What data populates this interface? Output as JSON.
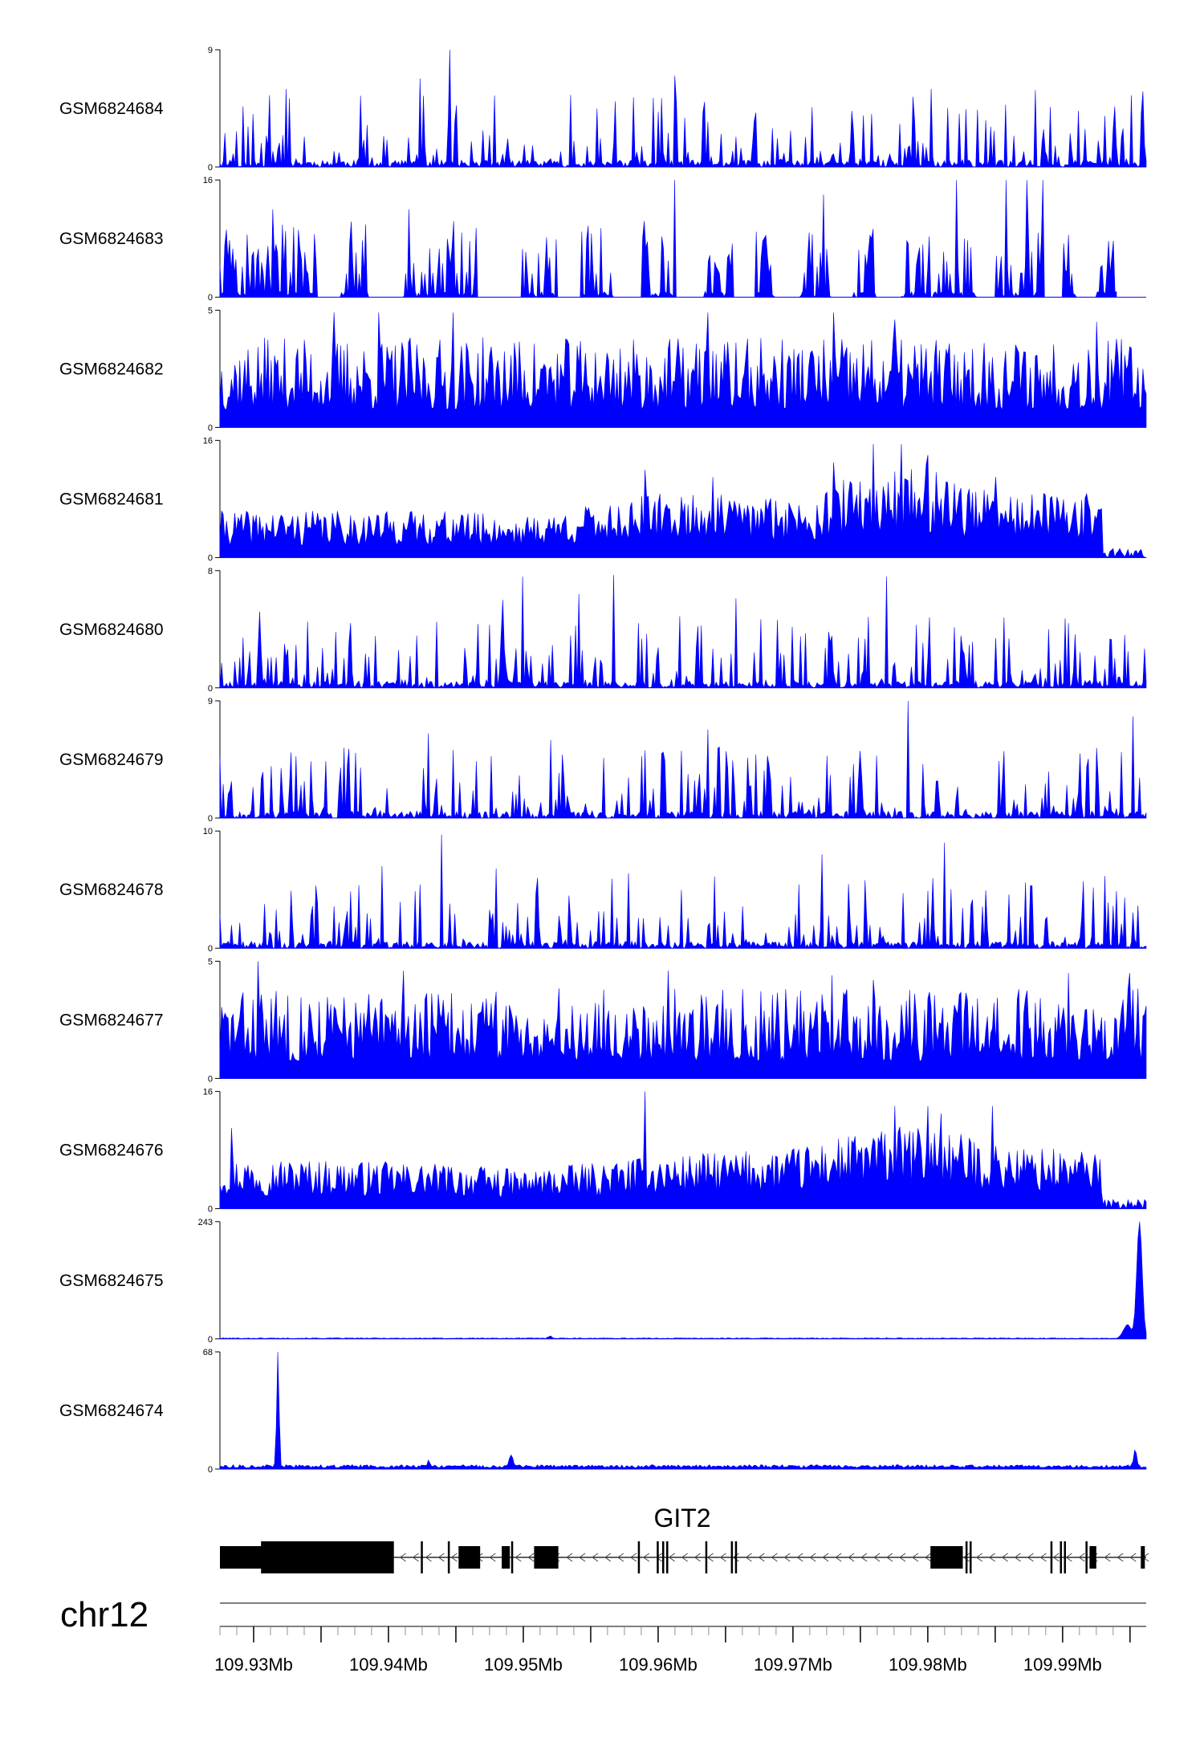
{
  "colors": {
    "signal": "#0000ff",
    "axis": "#000000",
    "gene": "#000000"
  },
  "chart_data": {
    "type": "area",
    "genome": {
      "chromosome": "chr12",
      "xlim": [
        109.9275,
        109.9962
      ],
      "ticks": [
        109.93,
        109.935,
        109.94,
        109.945,
        109.95,
        109.955,
        109.96,
        109.965,
        109.97,
        109.975,
        109.98,
        109.985,
        109.99,
        109.995
      ],
      "tick_labels": [
        {
          "pos": 109.93,
          "label": "109.93Mb"
        },
        {
          "pos": 109.94,
          "label": "109.94Mb"
        },
        {
          "pos": 109.95,
          "label": "109.95Mb"
        },
        {
          "pos": 109.96,
          "label": "109.96Mb"
        },
        {
          "pos": 109.97,
          "label": "109.97Mb"
        },
        {
          "pos": 109.98,
          "label": "109.98Mb"
        },
        {
          "pos": 109.99,
          "label": "109.99Mb"
        }
      ]
    },
    "tracks": [
      {
        "name": "GSM6824684",
        "ymax": 9,
        "ymax_label": "9",
        "ymin_label": "0",
        "profile": "sparse",
        "seed": 11,
        "peaks": [
          [
            109.9445,
            9
          ],
          [
            109.9424,
            6.8
          ],
          [
            109.9612,
            7
          ],
          [
            109.9324,
            6.0
          ],
          [
            109.9802,
            6.0
          ],
          [
            109.988,
            5.9
          ],
          [
            109.9959,
            5.8
          ]
        ]
      },
      {
        "name": "GSM6824683",
        "ymax": 16,
        "ymax_label": "16",
        "ymin_label": "0",
        "profile": "gapped",
        "seed": 23,
        "end": 109.994,
        "peaks": [
          [
            109.9314,
            12
          ],
          [
            109.9415,
            12
          ],
          [
            109.9612,
            16
          ],
          [
            109.9858,
            16
          ],
          [
            109.9873,
            16
          ],
          [
            109.9885,
            16
          ],
          [
            109.9821,
            16
          ],
          [
            109.9723,
            14
          ]
        ],
        "gaps": [
          [
            109.9347,
            109.9365
          ],
          [
            109.9385,
            109.9411
          ],
          [
            109.9465,
            109.9499
          ],
          [
            109.9525,
            109.9543
          ],
          [
            109.9566,
            109.9588
          ],
          [
            109.9612,
            109.9634
          ],
          [
            109.9656,
            109.9672
          ],
          [
            109.9687,
            109.9705
          ],
          [
            109.9728,
            109.9745
          ],
          [
            109.9762,
            109.978
          ],
          [
            109.9836,
            109.985
          ],
          [
            109.9885,
            109.99
          ],
          [
            109.991,
            109.9925
          ]
        ]
      },
      {
        "name": "GSM6824682",
        "ymax": 5,
        "ymax_label": "5",
        "ymin_label": "0",
        "profile": "dense",
        "seed": 37,
        "peaks": [
          [
            109.936,
            4.9
          ],
          [
            109.9393,
            4.9
          ],
          [
            109.9448,
            4.9
          ],
          [
            109.9637,
            4.9
          ],
          [
            109.973,
            4.9
          ],
          [
            109.9775,
            4.6
          ],
          [
            109.9925,
            4.5
          ]
        ]
      },
      {
        "name": "GSM6824681",
        "ymax": 16,
        "ymax_label": "16",
        "ymin_label": "0",
        "profile": "broad",
        "seed": 41,
        "tail_start": 109.993,
        "tail_level": 0.08,
        "peaks": [
          [
            109.976,
            15.5
          ],
          [
            109.978,
            15.5
          ],
          [
            109.98,
            14
          ],
          [
            109.973,
            13
          ],
          [
            109.959,
            12
          ],
          [
            109.964,
            11
          ],
          [
            109.985,
            11
          ]
        ],
        "envelope": [
          [
            109.9275,
            0.4
          ],
          [
            109.945,
            0.4
          ],
          [
            109.95,
            0.35
          ],
          [
            109.96,
            0.55
          ],
          [
            109.97,
            0.52
          ],
          [
            109.976,
            0.75
          ],
          [
            109.98,
            0.8
          ],
          [
            109.985,
            0.55
          ],
          [
            109.992,
            0.55
          ]
        ]
      },
      {
        "name": "GSM6824680",
        "ymax": 8,
        "ymax_label": "8",
        "ymin_label": "0",
        "profile": "sparse",
        "seed": 53,
        "peaks": [
          [
            109.95,
            7.6
          ],
          [
            109.9567,
            7.7
          ],
          [
            109.9769,
            7.6
          ],
          [
            109.9541,
            6.4
          ],
          [
            109.9485,
            6.0
          ],
          [
            109.9658,
            6.1
          ],
          [
            109.9305,
            5.2
          ]
        ]
      },
      {
        "name": "GSM6824679",
        "ymax": 9,
        "ymax_label": "9",
        "ymin_label": "0",
        "profile": "sparse",
        "seed": 67,
        "peaks": [
          [
            109.9785,
            9
          ],
          [
            109.9952,
            7.8
          ],
          [
            109.9637,
            6.8
          ],
          [
            109.943,
            6.5
          ],
          [
            109.952,
            6.0
          ],
          [
            109.9762,
            4.8
          ],
          [
            109.9275,
            4.7
          ]
        ]
      },
      {
        "name": "GSM6824678",
        "ymax": 10,
        "ymax_label": "10",
        "ymin_label": "0",
        "profile": "sparse",
        "seed": 71,
        "peaks": [
          [
            109.944,
            9.7
          ],
          [
            109.9812,
            9.0
          ],
          [
            109.9722,
            8.0
          ],
          [
            109.9395,
            7.0
          ],
          [
            109.948,
            6.8
          ],
          [
            109.9578,
            6.4
          ],
          [
            109.9753,
            5.8
          ]
        ]
      },
      {
        "name": "GSM6824677",
        "ymax": 5,
        "ymax_label": "5",
        "ymin_label": "0",
        "profile": "dense",
        "seed": 83,
        "peaks": [
          [
            109.9303,
            5.0
          ],
          [
            109.9411,
            4.6
          ],
          [
            109.9607,
            4.6
          ],
          [
            109.9729,
            4.4
          ],
          [
            109.976,
            4.2
          ],
          [
            109.9904,
            4.5
          ],
          [
            109.995,
            4.5
          ]
        ]
      },
      {
        "name": "GSM6824676",
        "ymax": 16,
        "ymax_label": "16",
        "ymin_label": "0",
        "profile": "broad",
        "seed": 97,
        "tail_start": 109.993,
        "tail_level": 0.08,
        "peaks": [
          [
            109.959,
            16
          ],
          [
            109.9775,
            14
          ],
          [
            109.98,
            14
          ],
          [
            109.981,
            13
          ],
          [
            109.9848,
            14
          ],
          [
            109.9283,
            11
          ]
        ],
        "envelope": [
          [
            109.9275,
            0.45
          ],
          [
            109.945,
            0.38
          ],
          [
            109.95,
            0.33
          ],
          [
            109.96,
            0.45
          ],
          [
            109.97,
            0.52
          ],
          [
            109.976,
            0.68
          ],
          [
            109.98,
            0.72
          ],
          [
            109.985,
            0.55
          ],
          [
            109.992,
            0.5
          ]
        ]
      },
      {
        "name": "GSM6824675",
        "ymax": 243,
        "ymax_label": "243",
        "ymin_label": "0",
        "profile": "spike",
        "seed": 101,
        "baseline": 1.5,
        "spikes": [
          [
            109.9957,
            243,
            0.00028
          ],
          [
            109.9948,
            28,
            0.0004
          ]
        ],
        "bumps": [
          [
            109.952,
            5
          ]
        ]
      },
      {
        "name": "GSM6824674",
        "ymax": 68,
        "ymax_label": "68",
        "ymin_label": "0",
        "profile": "spike",
        "seed": 113,
        "baseline": 1.8,
        "spikes": [
          [
            109.9318,
            68,
            0.00012
          ],
          [
            109.9954,
            10,
            0.00015
          ]
        ],
        "bumps": [
          [
            109.9491,
            7
          ],
          [
            109.943,
            3
          ]
        ]
      }
    ],
    "gene": {
      "name": "GIT2",
      "strand": "-",
      "start": 109.9275,
      "end": 109.9962,
      "exons": [
        [
          109.9275,
          109.9307,
          "thick"
        ],
        [
          109.9309,
          109.93105,
          "thin"
        ],
        [
          109.9362,
          109.9365,
          "thick"
        ],
        [
          109.9367,
          109.9369,
          "thick"
        ],
        [
          109.937,
          109.9383,
          "thick"
        ],
        [
          109.9404,
          109.93055,
          "thin"
        ],
        [
          109.9424,
          109.94255,
          "thin"
        ],
        [
          109.9452,
          109.9468,
          "thick"
        ],
        [
          109.9444,
          109.94455,
          "thin"
        ],
        [
          109.9484,
          109.949,
          "thick"
        ],
        [
          109.9491,
          109.94925,
          "thin"
        ],
        [
          109.9508,
          109.9526,
          "thick"
        ],
        [
          109.9585,
          109.95865,
          "thin"
        ],
        [
          109.9599,
          109.96005,
          "thin"
        ],
        [
          109.9603,
          109.96045,
          "thin"
        ],
        [
          109.9606,
          109.96075,
          "thin"
        ],
        [
          109.9635,
          109.96365,
          "thin"
        ],
        [
          109.9654,
          109.96555,
          "thin"
        ],
        [
          109.9657,
          109.96585,
          "thin"
        ],
        [
          109.9802,
          109.9826,
          "thick"
        ],
        [
          109.9828,
          109.98295,
          "thin"
        ],
        [
          109.9831,
          109.98325,
          "thin"
        ],
        [
          109.9891,
          109.98925,
          "thin"
        ],
        [
          109.9898,
          109.98995,
          "thin"
        ],
        [
          109.9901,
          109.99025,
          "thin"
        ],
        [
          109.992,
          109.9925,
          "thick"
        ],
        [
          109.9917,
          109.99185,
          "thin"
        ],
        [
          109.9958,
          109.9961,
          "thick"
        ]
      ]
    }
  }
}
